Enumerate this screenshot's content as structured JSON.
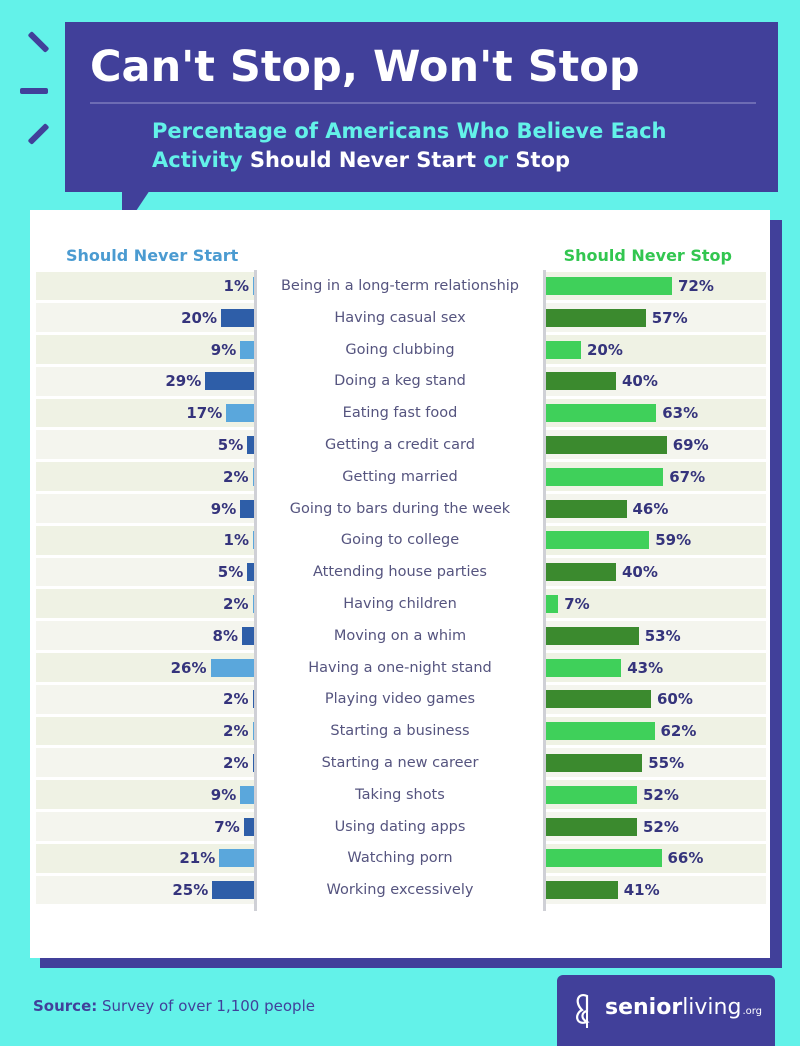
{
  "header": {
    "title": "Can't Stop, Won't Stop",
    "subtitle_part1": "Percentage of Americans Who Believe Each Activity ",
    "subtitle_bold1": "Should Never Start",
    "subtitle_part2": " or ",
    "subtitle_bold2": "Stop"
  },
  "columns": {
    "left_title": "Should Never Start",
    "right_title": "Should Never Stop"
  },
  "colors": {
    "background": "#63f2e9",
    "header": "#41409a",
    "start_light": "#5aa7dc",
    "start_dark": "#2e5ea8",
    "stop_light": "#3fd05a",
    "stop_dark": "#3b8a2e",
    "label": "#35347c"
  },
  "chart_data": {
    "type": "bar",
    "categories": [
      "Being in a long-term relationship",
      "Having casual sex",
      "Going clubbing",
      "Doing a keg stand",
      "Eating fast food",
      "Getting a credit card",
      "Getting married",
      "Going to bars during the week",
      "Going to college",
      "Attending house parties",
      "Having children",
      "Moving on a whim",
      "Having a one-night stand",
      "Playing video games",
      "Starting a business",
      "Starting a new career",
      "Taking shots",
      "Using dating apps",
      "Watching porn",
      "Working excessively"
    ],
    "series": [
      {
        "name": "Should Never Start",
        "values": [
          1,
          20,
          9,
          29,
          17,
          5,
          2,
          9,
          1,
          5,
          2,
          8,
          26,
          2,
          2,
          2,
          9,
          7,
          21,
          25
        ]
      },
      {
        "name": "Should Never Stop",
        "values": [
          72,
          57,
          20,
          40,
          63,
          69,
          67,
          46,
          59,
          40,
          7,
          53,
          43,
          60,
          62,
          55,
          52,
          52,
          66,
          41
        ]
      }
    ],
    "unit": "%",
    "title": "Can't Stop, Won't Stop",
    "subtitle": "Percentage of Americans Who Believe Each Activity Should Never Start or Stop",
    "xlim": [
      0,
      100
    ],
    "grid": false,
    "legend": "top"
  },
  "footer": {
    "source_label": "Source:",
    "source_text": " Survey of over 1,100 people"
  },
  "logo": {
    "name_bold": "senior",
    "name_regular": "living",
    "tld": ".org",
    "icon": "butterfly-icon"
  }
}
